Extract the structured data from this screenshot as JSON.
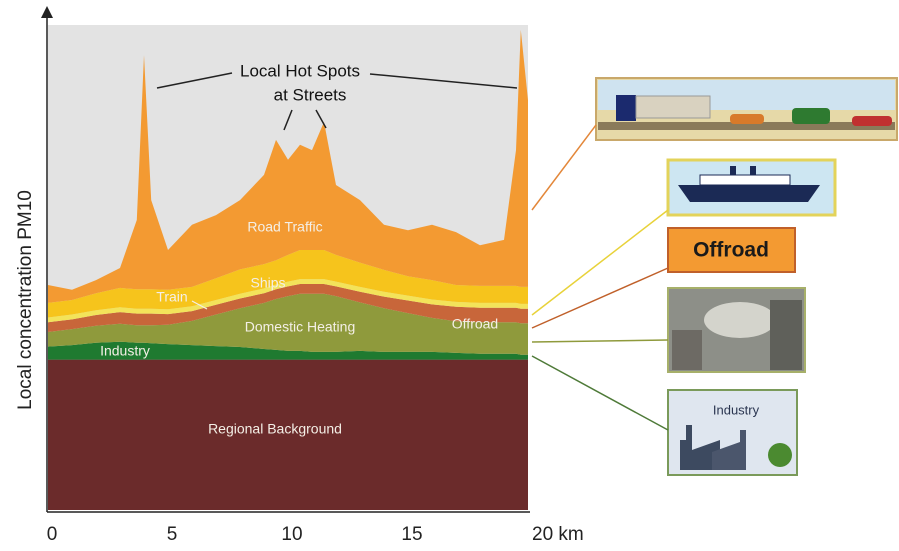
{
  "chart_data": {
    "type": "area",
    "stacked": true,
    "ylabel": "Local concentration PM10",
    "annotation": [
      "Local Hot Spots",
      "at Streets"
    ],
    "x": [
      0,
      1,
      2,
      3,
      3.7,
      4,
      4.3,
      5,
      6,
      7,
      8,
      9,
      9.5,
      10,
      10.5,
      11,
      11.5,
      12,
      13,
      14,
      15,
      16,
      17,
      18,
      19,
      19.5,
      19.7,
      20
    ],
    "xlim": [
      0,
      20
    ],
    "xticks": [
      0,
      5,
      10,
      15,
      {
        "value": 20,
        "label": "20 km"
      }
    ],
    "ylim": [
      0,
      100
    ],
    "background": "#e3e3e3",
    "series": [
      {
        "name": "Regional Background",
        "color": "#6b2b2b",
        "values": [
          31,
          31,
          31,
          31,
          31,
          31,
          31,
          31,
          31,
          31,
          31,
          31,
          31,
          31,
          31,
          31,
          31,
          31,
          31,
          31,
          31,
          31,
          31,
          31,
          31,
          31,
          31,
          31
        ]
      },
      {
        "name": "Industry",
        "color": "#1f7a30",
        "values": [
          2.7,
          3,
          3.5,
          3.7,
          3.5,
          3.5,
          3.4,
          3.2,
          3,
          2.8,
          2.6,
          2.2,
          2,
          1.8,
          1.8,
          1.6,
          1.6,
          1.6,
          1.8,
          1.6,
          1.6,
          1.6,
          1.4,
          1.2,
          1.2,
          1.2,
          1,
          1
        ]
      },
      {
        "name": "Domestic Heating",
        "color": "#8f9a3c",
        "values": [
          3,
          3.3,
          3.5,
          3.7,
          3.6,
          3.6,
          3.7,
          4,
          5,
          6.5,
          8,
          9.5,
          10.5,
          11.3,
          11.8,
          12,
          12,
          11.5,
          10,
          9,
          8,
          7,
          6.5,
          6.5,
          6.5,
          6.5,
          6.5,
          6.5
        ]
      },
      {
        "name": "Offroad",
        "color": "#c8663a",
        "values": [
          2,
          2,
          2.2,
          2.4,
          2.4,
          2.4,
          2.4,
          2.2,
          2,
          2,
          2,
          2,
          2,
          2,
          2,
          2,
          2,
          2,
          2.2,
          2.4,
          2.6,
          2.8,
          3,
          3,
          3,
          3,
          3,
          3
        ]
      },
      {
        "name": "Train",
        "color": "#f3e35a",
        "values": [
          1,
          1,
          1,
          1,
          1,
          1,
          1,
          1,
          1,
          1,
          1,
          1,
          1,
          1,
          1,
          1,
          1,
          1,
          1,
          1,
          1,
          1,
          1,
          1,
          1,
          1,
          1,
          1
        ]
      },
      {
        "name": "Ships",
        "color": "#f6c41c",
        "values": [
          3,
          3,
          3.5,
          4,
          4,
          4,
          4,
          4,
          4,
          4.5,
          5,
          5,
          5,
          5.5,
          6,
          6,
          6,
          5.5,
          5,
          4.5,
          4,
          4,
          3.5,
          3.5,
          3.5,
          3.5,
          3.5,
          3.5
        ]
      },
      {
        "name": "Road Traffic",
        "color": "#f39a32",
        "values": [
          3.7,
          2.1,
          2.7,
          4.1,
          14.3,
          48.3,
          18.4,
          8.2,
          12.8,
          13,
          14.3,
          18.4,
          24.8,
          19.6,
          21.7,
          20.6,
          26.4,
          14.4,
          12.9,
          9.3,
          9.5,
          11.4,
          10.9,
          8.4,
          9.5,
          28,
          53,
          38.5
        ]
      }
    ]
  }
}
